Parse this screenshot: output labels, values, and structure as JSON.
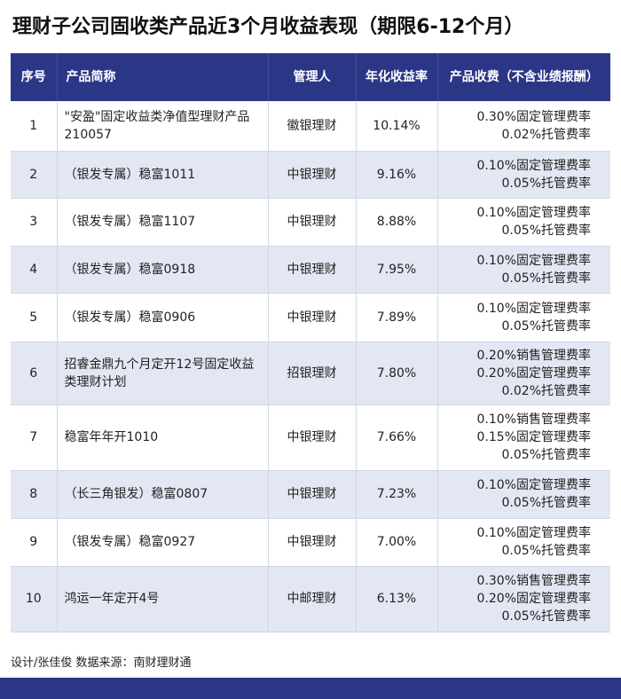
{
  "title": "理财子公司固收类产品近3个月收益表现（期限6-12个月）",
  "table": {
    "headers": {
      "index": "序号",
      "name": "产品简称",
      "manager": "管理人",
      "yield": "年化收益率",
      "fees": "产品收费（不含业绩报酬）"
    },
    "rows": [
      {
        "index": "1",
        "name": "\"安盈\"固定收益类净值型理财产品210057",
        "manager": "徽银理财",
        "yield": "10.14%",
        "fees": [
          "0.30%固定管理费率",
          "0.02%托管费率"
        ]
      },
      {
        "index": "2",
        "name": "（银发专属）稳富1011",
        "manager": "中银理财",
        "yield": "9.16%",
        "fees": [
          "0.10%固定管理费率",
          "0.05%托管费率"
        ]
      },
      {
        "index": "3",
        "name": "（银发专属）稳富1107",
        "manager": "中银理财",
        "yield": "8.88%",
        "fees": [
          "0.10%固定管理费率",
          "0.05%托管费率"
        ]
      },
      {
        "index": "4",
        "name": "（银发专属）稳富0918",
        "manager": "中银理财",
        "yield": "7.95%",
        "fees": [
          "0.10%固定管理费率",
          "0.05%托管费率"
        ]
      },
      {
        "index": "5",
        "name": "（银发专属）稳富0906",
        "manager": "中银理财",
        "yield": "7.89%",
        "fees": [
          "0.10%固定管理费率",
          "0.05%托管费率"
        ]
      },
      {
        "index": "6",
        "name": "招睿金鼎九个月定开12号固定收益类理财计划",
        "manager": "招银理财",
        "yield": "7.80%",
        "fees": [
          "0.20%销售管理费率",
          "0.20%固定管理费率",
          "0.02%托管费率"
        ]
      },
      {
        "index": "7",
        "name": "稳富年年开1010",
        "manager": "中银理财",
        "yield": "7.66%",
        "fees": [
          "0.10%销售管理费率",
          "0.15%固定管理费率",
          "0.05%托管费率"
        ]
      },
      {
        "index": "8",
        "name": "（长三角银发）稳富0807",
        "manager": "中银理财",
        "yield": "7.23%",
        "fees": [
          "0.10%固定管理费率",
          "0.05%托管费率"
        ]
      },
      {
        "index": "9",
        "name": "（银发专属）稳富0927",
        "manager": "中银理财",
        "yield": "7.00%",
        "fees": [
          "0.10%固定管理费率",
          "0.05%托管费率"
        ]
      },
      {
        "index": "10",
        "name": "鸿运一年定开4号",
        "manager": "中邮理财",
        "yield": "6.13%",
        "fees": [
          "0.30%销售管理费率",
          "0.20%固定管理费率",
          "0.05%托管费率"
        ]
      }
    ]
  },
  "footer": "设计/张佳俊 数据来源：南财理财通"
}
